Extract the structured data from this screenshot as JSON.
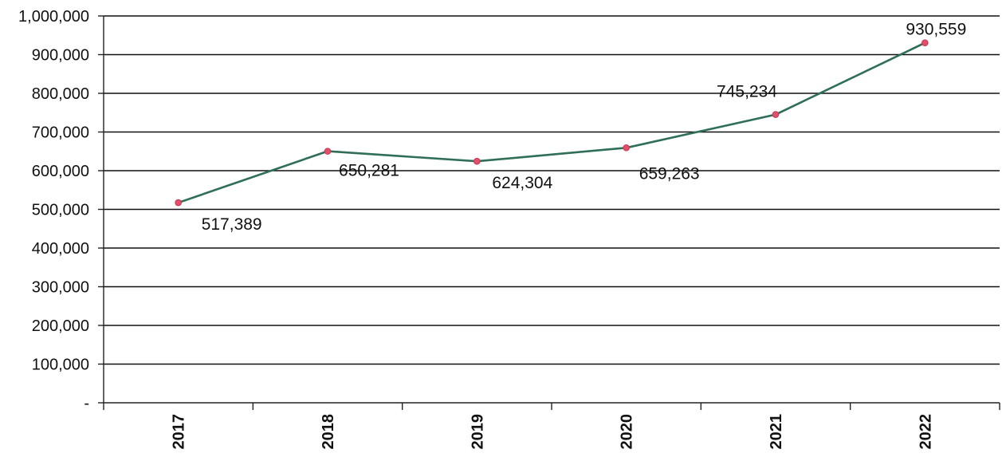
{
  "chart_data": {
    "type": "line",
    "title": "",
    "xlabel": "",
    "ylabel": "",
    "categories": [
      "2017",
      "2018",
      "2019",
      "2020",
      "2021",
      "2022"
    ],
    "series": [
      {
        "values": [
          517389,
          650281,
          624304,
          659263,
          745234,
          930559
        ]
      }
    ],
    "data_labels": [
      "517,389",
      "650,281",
      "624,304",
      "659,263",
      "745,234",
      "930,559"
    ],
    "y_ticks": [
      {
        "value": 0,
        "label": "-"
      },
      {
        "value": 100000,
        "label": "100,000"
      },
      {
        "value": 200000,
        "label": "200,000"
      },
      {
        "value": 300000,
        "label": "300,000"
      },
      {
        "value": 400000,
        "label": "400,000"
      },
      {
        "value": 500000,
        "label": "500,000"
      },
      {
        "value": 600000,
        "label": "600,000"
      },
      {
        "value": 700000,
        "label": "700,000"
      },
      {
        "value": 800000,
        "label": "800,000"
      },
      {
        "value": 900000,
        "label": "900,000"
      },
      {
        "value": 1000000,
        "label": "1,000,000"
      }
    ],
    "ylim": [
      0,
      1000000
    ],
    "grid": true,
    "legend": "none",
    "colors": {
      "line": "#2f6e57",
      "marker": "#e0506a"
    }
  }
}
